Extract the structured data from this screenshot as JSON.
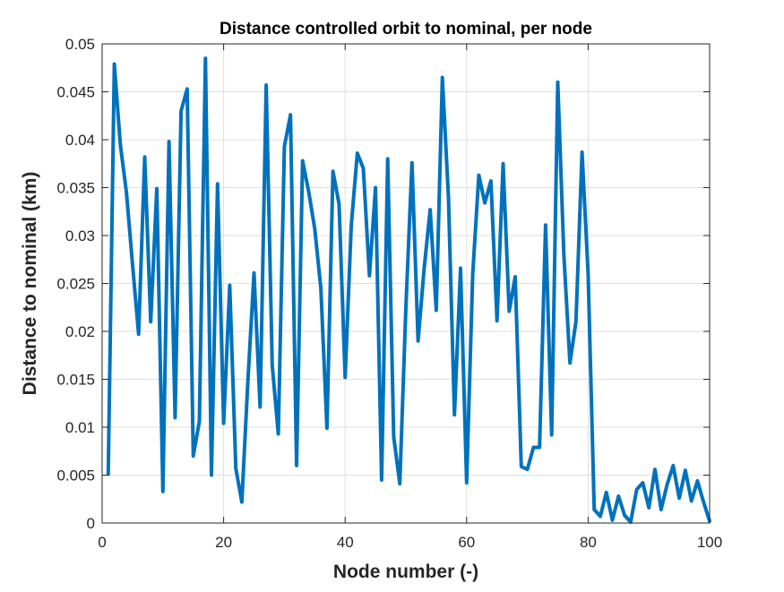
{
  "chart_data": {
    "type": "line",
    "title": "Distance controlled orbit to nominal, per node",
    "xlabel": "Node number (-)",
    "ylabel": "Distance to nominal (km)",
    "xlim": [
      0,
      100
    ],
    "ylim": [
      0,
      0.05
    ],
    "xticks": [
      0,
      20,
      40,
      60,
      80,
      100
    ],
    "xtick_labels": [
      "0",
      "20",
      "40",
      "60",
      "80",
      "100"
    ],
    "yticks": [
      0,
      0.005,
      0.01,
      0.015,
      0.02,
      0.025,
      0.03,
      0.035,
      0.04,
      0.045,
      0.05
    ],
    "ytick_labels": [
      "0",
      "0.005",
      "0.01",
      "0.015",
      "0.02",
      "0.025",
      "0.03",
      "0.035",
      "0.04",
      "0.045",
      "0.05"
    ],
    "grid": true,
    "line_color": "#0072BD",
    "series": [
      {
        "x": [
          1,
          2,
          3,
          4,
          5,
          6,
          7,
          8,
          9,
          10,
          11,
          12,
          13,
          14,
          15,
          16,
          17,
          18,
          19,
          20,
          21,
          22,
          23,
          24,
          25,
          26,
          27,
          28,
          29,
          30,
          31,
          32,
          33,
          34,
          35,
          36,
          37,
          38,
          39,
          40,
          41,
          42,
          43,
          44,
          45,
          46,
          47,
          48,
          49,
          50,
          51,
          52,
          53,
          54,
          55,
          56,
          57,
          58,
          59,
          60,
          61,
          62,
          63,
          64,
          65,
          66,
          67,
          68,
          69,
          70,
          71,
          72,
          73,
          74,
          75,
          76,
          77,
          78,
          79,
          80,
          81,
          82,
          83,
          84,
          85,
          86,
          87,
          88,
          89,
          90,
          91,
          92,
          93,
          94,
          95,
          96,
          97,
          98,
          99,
          100
        ],
        "values": [
          0.0051,
          0.0479,
          0.0395,
          0.0345,
          0.027,
          0.0197,
          0.0382,
          0.021,
          0.0349,
          0.0033,
          0.0398,
          0.011,
          0.043,
          0.0453,
          0.007,
          0.0106,
          0.0485,
          0.005,
          0.0354,
          0.0104,
          0.0248,
          0.0057,
          0.0022,
          0.0149,
          0.0261,
          0.0121,
          0.0457,
          0.0165,
          0.0093,
          0.0393,
          0.0426,
          0.006,
          0.0378,
          0.0346,
          0.0307,
          0.0245,
          0.0099,
          0.0367,
          0.0333,
          0.0152,
          0.031,
          0.0386,
          0.037,
          0.0258,
          0.035,
          0.0045,
          0.038,
          0.009,
          0.0041,
          0.0225,
          0.0376,
          0.019,
          0.0265,
          0.0327,
          0.0222,
          0.0465,
          0.034,
          0.0113,
          0.0266,
          0.0042,
          0.026,
          0.0363,
          0.0334,
          0.0357,
          0.0211,
          0.0375,
          0.0221,
          0.0257,
          0.0059,
          0.0056,
          0.0079,
          0.0079,
          0.0311,
          0.0092,
          0.046,
          0.028,
          0.0167,
          0.021,
          0.0387,
          0.026,
          0.0014,
          0.0007,
          0.0032,
          0.0003,
          0.0028,
          0.0008,
          0.0001,
          0.0035,
          0.0042,
          0.0016,
          0.0056,
          0.0014,
          0.004,
          0.006,
          0.0026,
          0.0055,
          0.0023,
          0.0044,
          0.0022,
          0.0002
        ]
      }
    ]
  }
}
